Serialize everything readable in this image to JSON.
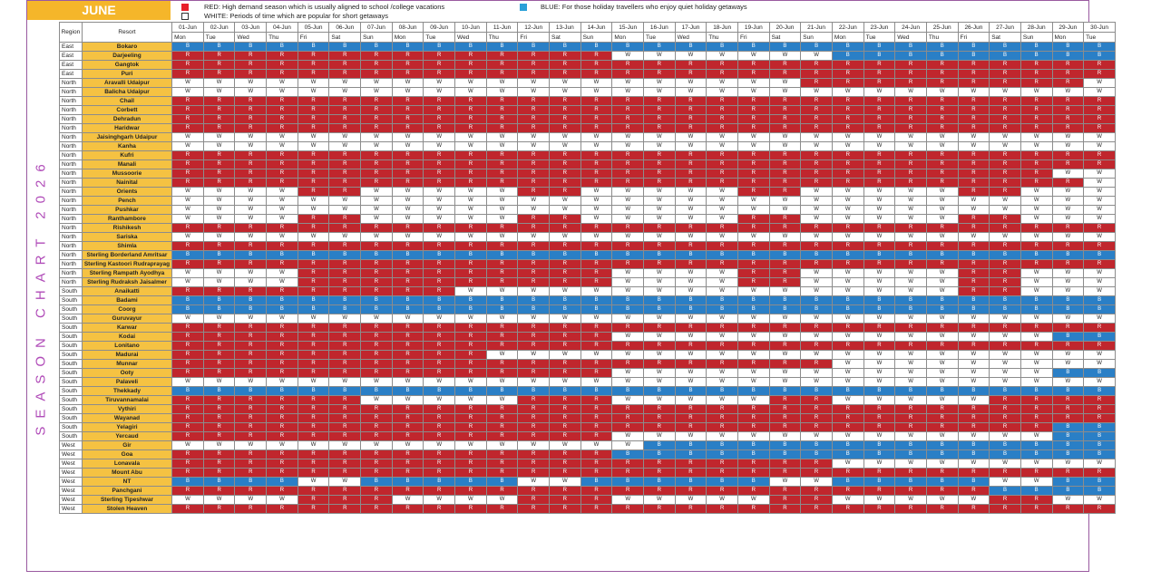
{
  "month": "JUNE",
  "side_title": "SEASON CHART 2026",
  "legend": {
    "red": "RED: High demand season which is usually aligned to school /college vacations",
    "white": "WHITE: Periods of time which are popular for short getaways",
    "blue": "BLUE: For those holiday travellers who enjoy quiet holiday getaways",
    "colors": {
      "red": "#c0262d",
      "white": "#ffffff",
      "blue": "#2a7fc6"
    }
  },
  "header": {
    "region": "Region",
    "resort": "Resort"
  },
  "dates": [
    "01-Jun",
    "02-Jun",
    "03-Jun",
    "04-Jun",
    "05-Jun",
    "06-Jun",
    "07-Jun",
    "08-Jun",
    "09-Jun",
    "10-Jun",
    "11-Jun",
    "12-Jun",
    "13-Jun",
    "14-Jun",
    "15-Jun",
    "16-Jun",
    "17-Jun",
    "18-Jun",
    "19-Jun",
    "20-Jun",
    "21-Jun",
    "22-Jun",
    "23-Jun",
    "24-Jun",
    "25-Jun",
    "26-Jun",
    "27-Jun",
    "28-Jun",
    "29-Jun",
    "30-Jun"
  ],
  "days": [
    "Mon",
    "Tue",
    "Wed",
    "Thu",
    "Fri",
    "Sat",
    "Sun",
    "Mon",
    "Tue",
    "Wed",
    "Thu",
    "Fri",
    "Sat",
    "Sun",
    "Mon",
    "Tue",
    "Wed",
    "Thu",
    "Fri",
    "Sat",
    "Sun",
    "Mon",
    "Tue",
    "Wed",
    "Thu",
    "Fri",
    "Sat",
    "Sun",
    "Mon",
    "Tue"
  ],
  "rows": [
    {
      "region": "East",
      "resort": "Bokaro",
      "season": "BBBBBBBBBBBBBBBBBBBBBBBBBBBBBB"
    },
    {
      "region": "East",
      "resort": "Darjeeling",
      "season": "RRRRRRRRRRRRRRWWWWWWWBBBBBBBBB"
    },
    {
      "region": "East",
      "resort": "Gangtok",
      "season": "RRRRRRRRRRRRRRRRRRRRRRRRRRRRRR"
    },
    {
      "region": "East",
      "resort": "Puri",
      "season": "RRRRRRRRRRRRRRRRRRRRRRRRRRRRRR"
    },
    {
      "region": "North",
      "resort": "Aravalli Udaipur",
      "season": "WWWWWWWWWWWWWWWWWWWWRRRRRRRRRW"
    },
    {
      "region": "North",
      "resort": "Balicha Udaipur",
      "season": "WWWWWWWWWWWWWWWWWWWWWWWWWWWWWW"
    },
    {
      "region": "North",
      "resort": "Chail",
      "season": "RRRRRRRRRRRRRRRRRRRRRRRRRRRRRR"
    },
    {
      "region": "North",
      "resort": "Corbett",
      "season": "RRRRRRRRRRRRRRRRRRRRRRRRRRRRRR"
    },
    {
      "region": "North",
      "resort": "Dehradun",
      "season": "RRRRRRRRRRRRRRRRRRRRRRRRRRRRRR"
    },
    {
      "region": "North",
      "resort": "Haridwar",
      "season": "RRRRRRRRRRRRRRRRRRRRRRRRRRRRRR"
    },
    {
      "region": "North",
      "resort": "Jaisinghgarh Udaipur",
      "season": "WWWWWWWWWWWWWWWWWWWWWWWWWWWWWW"
    },
    {
      "region": "North",
      "resort": "Kanha",
      "season": "WWWWWWWWWWWWWWWWWWWWWWWWWWWWWW"
    },
    {
      "region": "North",
      "resort": "Kufri",
      "season": "RRRRRRRRRRRRRRRRRRRRRRRRRRRRRR"
    },
    {
      "region": "North",
      "resort": "Manali",
      "season": "RRRRRRRRRRRRRRRRRRRRRRRRRRRRRR"
    },
    {
      "region": "North",
      "resort": "Mussoorie",
      "season": "RRRRRRRRRRRRRRRRRRRRRRRRRRRRWW"
    },
    {
      "region": "North",
      "resort": "Nainital",
      "season": "RRRRRRRRRRRRRRRRRRRRRRRRRRRRRW"
    },
    {
      "region": "North",
      "resort": "Orients",
      "season": "WWWWRRWWWWWRRWWWWWRRWWWWWRRWWW"
    },
    {
      "region": "North",
      "resort": "Pench",
      "season": "WWWWWWWWWWWWWWWWWWWWWWWWWWWWWW"
    },
    {
      "region": "North",
      "resort": "Pushkar",
      "season": "WWWWWWWWWWWWWWWWWWWWWWWWWWWWWW"
    },
    {
      "region": "North",
      "resort": "Ranthambore",
      "season": "WWWWRRWWWWWRRWWWWWRRWWWWWRRWWW"
    },
    {
      "region": "North",
      "resort": "Rishikesh",
      "season": "RRRRRRRRRRRRRRRRRRRRRRRRRRRRRR"
    },
    {
      "region": "North",
      "resort": "Sariska",
      "season": "WWWWWWWWWWWWWWWWWWWWWWWWWWWWWW"
    },
    {
      "region": "North",
      "resort": "Shimla",
      "season": "RRRRRRRRRRRRRRRRRRRRRRRRRRRRRR"
    },
    {
      "region": "North",
      "resort": "Sterling Borderland Amritsar",
      "season": "BBBBBBBBBBBBBBBBBBBBBBBBBBBBBB"
    },
    {
      "region": "North",
      "resort": "Sterling Kastoori Rudraprayag",
      "season": "RRRRRRRRRRRRRRRRRRRRRRRRRRRRRR"
    },
    {
      "region": "North",
      "resort": "Sterling Rampath Ayodhya",
      "season": "WWWWRRRRRRRRRRWWWWRRWWWWWRRWWW"
    },
    {
      "region": "North",
      "resort": "Sterling Rudraksh Jaisalmer",
      "season": "WWWWRRRRRRRRRRWWWWRRWWWWWRRWWW"
    },
    {
      "region": "South",
      "resort": "Anaikatti",
      "season": "RRRRRRRRRWWWWWWWWWWWWWWWWRRWWW"
    },
    {
      "region": "South",
      "resort": "Badami",
      "season": "BBBBBBBBBBBBBBBBBBBBBBBBBBBBBB"
    },
    {
      "region": "South",
      "resort": "Coorg",
      "season": "BBBBBBBBBBBBBBBBBBBBBBBBBBBBBB"
    },
    {
      "region": "South",
      "resort": "Guruvayur",
      "season": "WWWWWWWWWWWWWWWWWWWWWWWWWWWWWW"
    },
    {
      "region": "South",
      "resort": "Karwar",
      "season": "RRRRRRRRRRRRRRRRRRRRRRRRRRRRRR"
    },
    {
      "region": "South",
      "resort": "Kodai",
      "season": "RRRRRRRRRRRRRRWWWWWWWWWWWWWWBB"
    },
    {
      "region": "South",
      "resort": "Lonitano",
      "season": "RRRRRRRRRRRRRRRRRRRRRRRRRRRRRR"
    },
    {
      "region": "South",
      "resort": "Madurai",
      "season": "RRRRRRRRRRWWWWWWWWWWWWWWWWWWWW"
    },
    {
      "region": "South",
      "resort": "Munnar",
      "season": "RRRRRRRRRRRRRRRRRRRRRWWWWWWWWW"
    },
    {
      "region": "South",
      "resort": "Ooty",
      "season": "RRRRRRRRRRRRRRWWWWWWWWWWWWWWBB"
    },
    {
      "region": "South",
      "resort": "Palaveli",
      "season": "WWWWWWWWWWWWWWWWWWWWWWWWWWWWWW"
    },
    {
      "region": "South",
      "resort": "Thekkady",
      "season": "BBBBBBBBBBBBBBBBBBBBBBBBBBBBBB"
    },
    {
      "region": "South",
      "resort": "Tiruvannamalai",
      "season": "RRRRRRWWWWWRRRWWWWWRRWWWWWRRRR"
    },
    {
      "region": "South",
      "resort": "Vythiri",
      "season": "RRRRRRRRRRRRRRRRRRRRRRRRRRRRRR"
    },
    {
      "region": "South",
      "resort": "Wayanad",
      "season": "RRRRRRRRRRRRRRRRRRRRRRRRRRRRRR"
    },
    {
      "region": "South",
      "resort": "Yelagiri",
      "season": "RRRRRRRRRRRRRRRRRRRRRRRRRRRRBB"
    },
    {
      "region": "South",
      "resort": "Yercaud",
      "season": "RRRRRRRRRRRRRRWWWWWWWWWWWWWWBB"
    },
    {
      "region": "West",
      "resort": "Gir",
      "season": "WWWWWWWWWWWWWWWBBBBBBBBBBBBBBB"
    },
    {
      "region": "West",
      "resort": "Goa",
      "season": "RRRRRRRRRRRRRRBBBBBBBBBBBBBBBB"
    },
    {
      "region": "West",
      "resort": "Lonavala",
      "season": "RRRRRRRRRRRRRRRRRRRRRWWWWWWWWW"
    },
    {
      "region": "West",
      "resort": "Mount Abu",
      "season": "RRRRRRRRRRRRRRRRRRRRRRRRRRRRRR"
    },
    {
      "region": "West",
      "resort": "NT",
      "season": "BBBBWWBBBBBWWBBBBBBWWBBBBBWWBB"
    },
    {
      "region": "West",
      "resort": "Panchgani",
      "season": "RRRRRRRRRRRRRRRRRRRRRRRRRRBBBB"
    },
    {
      "region": "West",
      "resort": "Sterling Tipeshwar",
      "season": "WWWWRRRWWWWRRRWWWWWRRWWWWWRRWW"
    },
    {
      "region": "West",
      "resort": "Stolen Heaven",
      "season": "RRRRRRRRRRRRRRRRRRRRRRRRRRRRRR"
    }
  ]
}
